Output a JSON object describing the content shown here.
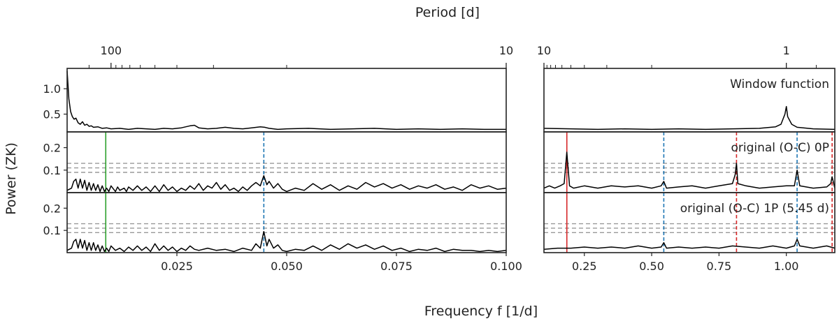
{
  "figure": {
    "top_axis_label": "Period [d]",
    "y_axis_label": "Power (ZK)",
    "x_axis_label": "Frequency f [1/d]"
  },
  "chart_data": [
    {
      "type": "line",
      "panel": "left",
      "xlim": [
        0.0,
        0.1
      ],
      "x_ticks": [
        0.025,
        0.05,
        0.075,
        0.1
      ],
      "x_tick_labels": [
        "0.025",
        "0.050",
        "0.075",
        "0.100"
      ],
      "top_axis": {
        "label": "Period [d]",
        "major_ticks": [
          100,
          10
        ],
        "major_tick_labels": [
          "100",
          "10"
        ]
      },
      "rows": [
        {
          "name": "window",
          "ylim": [
            0.15,
            1.4
          ],
          "y_ticks": [
            0.5,
            1.0
          ],
          "y_tick_labels": [
            "0.5",
            "1.0"
          ],
          "label": "",
          "noise_levels": [],
          "markers": [],
          "series": [
            {
              "x": [
                0.0,
                0.0004,
                0.0008,
                0.0012,
                0.0016,
                0.002,
                0.0025,
                0.003,
                0.0035,
                0.004,
                0.0045,
                0.005,
                0.0055,
                0.006,
                0.007,
                0.008,
                0.009,
                0.01,
                0.012,
                0.014,
                0.016,
                0.018,
                0.02,
                0.022,
                0.024,
                0.026,
                0.028,
                0.029,
                0.03,
                0.032,
                0.034,
                0.036,
                0.038,
                0.04,
                0.042,
                0.044,
                0.045,
                0.046,
                0.048,
                0.05,
                0.055,
                0.06,
                0.065,
                0.07,
                0.075,
                0.08,
                0.085,
                0.09,
                0.095,
                0.1
              ],
              "y": [
                1.35,
                0.8,
                0.55,
                0.45,
                0.4,
                0.42,
                0.33,
                0.3,
                0.35,
                0.28,
                0.3,
                0.26,
                0.27,
                0.24,
                0.25,
                0.22,
                0.23,
                0.21,
                0.22,
                0.2,
                0.22,
                0.21,
                0.2,
                0.22,
                0.21,
                0.23,
                0.27,
                0.28,
                0.23,
                0.21,
                0.22,
                0.24,
                0.22,
                0.21,
                0.23,
                0.25,
                0.24,
                0.22,
                0.2,
                0.21,
                0.22,
                0.2,
                0.21,
                0.22,
                0.2,
                0.21,
                0.2,
                0.21,
                0.2,
                0.2
              ]
            }
          ]
        },
        {
          "name": "0P",
          "ylim": [
            0.0,
            0.27
          ],
          "y_ticks": [
            0.1,
            0.2
          ],
          "y_tick_labels": [
            "0.1",
            "0.2"
          ],
          "label": "",
          "noise_levels": [
            0.09,
            0.11,
            0.13
          ],
          "markers": [
            {
              "x": 0.0088,
              "color": "#2ca02c",
              "style": "solid"
            },
            {
              "x": 0.0448,
              "color": "#1f77b4",
              "style": "dashed"
            }
          ],
          "series": [
            {
              "x": [
                0.0,
                0.001,
                0.0015,
                0.002,
                0.0025,
                0.003,
                0.0035,
                0.004,
                0.0045,
                0.005,
                0.0055,
                0.006,
                0.0065,
                0.007,
                0.0075,
                0.008,
                0.0085,
                0.009,
                0.0095,
                0.01,
                0.011,
                0.0115,
                0.012,
                0.013,
                0.0135,
                0.014,
                0.015,
                0.016,
                0.017,
                0.018,
                0.019,
                0.02,
                0.021,
                0.022,
                0.023,
                0.024,
                0.025,
                0.026,
                0.027,
                0.028,
                0.029,
                0.03,
                0.031,
                0.032,
                0.033,
                0.034,
                0.035,
                0.036,
                0.037,
                0.038,
                0.039,
                0.04,
                0.041,
                0.042,
                0.043,
                0.044,
                0.0448,
                0.0455,
                0.046,
                0.047,
                0.048,
                0.049,
                0.05,
                0.052,
                0.054,
                0.056,
                0.058,
                0.06,
                0.062,
                0.064,
                0.066,
                0.068,
                0.07,
                0.072,
                0.074,
                0.076,
                0.078,
                0.08,
                0.082,
                0.084,
                0.086,
                0.088,
                0.09,
                0.092,
                0.094,
                0.096,
                0.098,
                0.1
              ],
              "y": [
                0.01,
                0.02,
                0.05,
                0.06,
                0.02,
                0.06,
                0.02,
                0.055,
                0.01,
                0.045,
                0.01,
                0.04,
                0.01,
                0.035,
                0.005,
                0.03,
                0.005,
                0.02,
                0.005,
                0.03,
                0.005,
                0.025,
                0.01,
                0.02,
                0.005,
                0.025,
                0.01,
                0.03,
                0.01,
                0.025,
                0.005,
                0.03,
                0.005,
                0.035,
                0.01,
                0.025,
                0.005,
                0.02,
                0.01,
                0.03,
                0.015,
                0.04,
                0.01,
                0.03,
                0.02,
                0.045,
                0.015,
                0.035,
                0.01,
                0.02,
                0.005,
                0.025,
                0.01,
                0.03,
                0.045,
                0.03,
                0.075,
                0.035,
                0.05,
                0.02,
                0.04,
                0.015,
                0.005,
                0.02,
                0.01,
                0.04,
                0.015,
                0.035,
                0.01,
                0.03,
                0.015,
                0.045,
                0.025,
                0.04,
                0.02,
                0.035,
                0.015,
                0.03,
                0.02,
                0.035,
                0.015,
                0.025,
                0.01,
                0.035,
                0.02,
                0.03,
                0.015,
                0.02
              ]
            }
          ]
        },
        {
          "name": "1P",
          "ylim": [
            0.0,
            0.27
          ],
          "y_ticks": [
            0.1,
            0.2
          ],
          "y_tick_labels": [
            "0.1",
            "0.2"
          ],
          "label": "",
          "noise_levels": [
            0.09,
            0.11,
            0.13
          ],
          "markers": [
            {
              "x": 0.0088,
              "color": "#2ca02c",
              "style": "solid"
            },
            {
              "x": 0.0448,
              "color": "#1f77b4",
              "style": "dashed"
            }
          ],
          "series": [
            {
              "x": [
                0.0,
                0.001,
                0.0015,
                0.002,
                0.0025,
                0.003,
                0.0035,
                0.004,
                0.0045,
                0.005,
                0.0055,
                0.006,
                0.0065,
                0.007,
                0.0075,
                0.008,
                0.0085,
                0.009,
                0.0095,
                0.01,
                0.011,
                0.012,
                0.013,
                0.014,
                0.015,
                0.016,
                0.017,
                0.018,
                0.019,
                0.02,
                0.021,
                0.022,
                0.023,
                0.024,
                0.025,
                0.026,
                0.027,
                0.028,
                0.029,
                0.03,
                0.032,
                0.034,
                0.036,
                0.038,
                0.04,
                0.042,
                0.043,
                0.044,
                0.0448,
                0.0455,
                0.046,
                0.047,
                0.048,
                0.049,
                0.05,
                0.052,
                0.054,
                0.056,
                0.058,
                0.06,
                0.062,
                0.064,
                0.066,
                0.068,
                0.07,
                0.072,
                0.074,
                0.076,
                0.078,
                0.08,
                0.082,
                0.084,
                0.086,
                0.088,
                0.09,
                0.092,
                0.094,
                0.096,
                0.098,
                0.1
              ],
              "y": [
                0.01,
                0.02,
                0.05,
                0.06,
                0.02,
                0.06,
                0.02,
                0.055,
                0.01,
                0.045,
                0.01,
                0.045,
                0.01,
                0.035,
                0.005,
                0.03,
                0.005,
                0.02,
                0.005,
                0.03,
                0.01,
                0.02,
                0.005,
                0.025,
                0.01,
                0.03,
                0.01,
                0.025,
                0.005,
                0.04,
                0.01,
                0.03,
                0.01,
                0.025,
                0.005,
                0.02,
                0.01,
                0.03,
                0.015,
                0.01,
                0.02,
                0.01,
                0.015,
                0.005,
                0.02,
                0.01,
                0.04,
                0.02,
                0.095,
                0.03,
                0.06,
                0.02,
                0.035,
                0.01,
                0.005,
                0.015,
                0.01,
                0.03,
                0.01,
                0.035,
                0.015,
                0.04,
                0.02,
                0.035,
                0.015,
                0.03,
                0.01,
                0.02,
                0.005,
                0.015,
                0.01,
                0.02,
                0.005,
                0.015,
                0.01,
                0.01,
                0.005,
                0.01,
                0.005,
                0.01
              ]
            }
          ]
        }
      ]
    },
    {
      "type": "line",
      "panel": "right",
      "xlim": [
        0.1,
        1.18
      ],
      "x_ticks": [
        0.25,
        0.5,
        0.75,
        1.0
      ],
      "x_tick_labels": [
        "0.25",
        "0.50",
        "0.75",
        "1.00"
      ],
      "top_axis": {
        "label": "Period [d]",
        "major_ticks": [
          10,
          1
        ],
        "major_tick_labels": [
          "10",
          "1"
        ]
      },
      "rows": [
        {
          "name": "window",
          "ylim": [
            0.15,
            1.4
          ],
          "y_ticks": [],
          "y_tick_labels": [],
          "label": "Window function",
          "noise_levels": [],
          "markers": [],
          "series": [
            {
              "x": [
                0.1,
                0.2,
                0.3,
                0.4,
                0.5,
                0.6,
                0.7,
                0.8,
                0.9,
                0.96,
                0.98,
                0.995,
                1.0,
                1.005,
                1.02,
                1.04,
                1.1,
                1.18
              ],
              "y": [
                0.22,
                0.21,
                0.2,
                0.21,
                0.2,
                0.21,
                0.2,
                0.21,
                0.22,
                0.25,
                0.3,
                0.5,
                0.65,
                0.45,
                0.3,
                0.24,
                0.21,
                0.2
              ]
            }
          ]
        },
        {
          "name": "0P",
          "ylim": [
            0.0,
            0.27
          ],
          "y_ticks": [],
          "y_tick_labels": [],
          "label": "original (O-C) 0P",
          "noise_levels": [
            0.09,
            0.11,
            0.13
          ],
          "markers": [
            {
              "x": 0.185,
              "color": "#d62728",
              "style": "solid"
            },
            {
              "x": 0.545,
              "color": "#1f77b4",
              "style": "dashed"
            },
            {
              "x": 0.815,
              "color": "#d62728",
              "style": "dashed"
            },
            {
              "x": 1.04,
              "color": "#1f77b4",
              "style": "dashed"
            },
            {
              "x": 1.17,
              "color": "#d62728",
              "style": "dashed"
            }
          ],
          "series": [
            {
              "x": [
                0.1,
                0.12,
                0.14,
                0.16,
                0.175,
                0.185,
                0.195,
                0.21,
                0.25,
                0.3,
                0.35,
                0.4,
                0.45,
                0.5,
                0.535,
                0.545,
                0.555,
                0.6,
                0.65,
                0.7,
                0.75,
                0.8,
                0.81,
                0.815,
                0.82,
                0.85,
                0.9,
                0.95,
                1.0,
                1.03,
                1.04,
                1.05,
                1.1,
                1.15,
                1.165,
                1.17,
                1.18
              ],
              "y": [
                0.02,
                0.03,
                0.02,
                0.03,
                0.04,
                0.18,
                0.03,
                0.02,
                0.03,
                0.02,
                0.03,
                0.025,
                0.03,
                0.02,
                0.03,
                0.05,
                0.02,
                0.025,
                0.03,
                0.02,
                0.03,
                0.04,
                0.08,
                0.13,
                0.04,
                0.03,
                0.02,
                0.025,
                0.03,
                0.03,
                0.1,
                0.03,
                0.02,
                0.025,
                0.04,
                0.07,
                0.02
              ]
            }
          ]
        },
        {
          "name": "1P",
          "ylim": [
            0.0,
            0.27
          ],
          "y_ticks": [],
          "y_tick_labels": [],
          "label": "original (O-C) 1P (5.45 d)",
          "noise_levels": [
            0.09,
            0.11,
            0.13
          ],
          "markers": [
            {
              "x": 0.185,
              "color": "#d62728",
              "style": "solid"
            },
            {
              "x": 0.545,
              "color": "#1f77b4",
              "style": "dashed"
            },
            {
              "x": 0.815,
              "color": "#d62728",
              "style": "dashed"
            },
            {
              "x": 1.04,
              "color": "#1f77b4",
              "style": "dashed"
            },
            {
              "x": 1.17,
              "color": "#d62728",
              "style": "dashed"
            }
          ],
          "series": [
            {
              "x": [
                0.1,
                0.15,
                0.2,
                0.25,
                0.3,
                0.35,
                0.4,
                0.45,
                0.5,
                0.535,
                0.545,
                0.555,
                0.6,
                0.65,
                0.7,
                0.75,
                0.8,
                0.85,
                0.9,
                0.95,
                1.0,
                1.03,
                1.04,
                1.05,
                1.1,
                1.15,
                1.18
              ],
              "y": [
                0.015,
                0.02,
                0.02,
                0.025,
                0.02,
                0.025,
                0.02,
                0.03,
                0.02,
                0.025,
                0.045,
                0.02,
                0.025,
                0.02,
                0.025,
                0.02,
                0.03,
                0.025,
                0.02,
                0.03,
                0.02,
                0.03,
                0.06,
                0.03,
                0.02,
                0.03,
                0.02
              ]
            }
          ]
        }
      ]
    }
  ]
}
